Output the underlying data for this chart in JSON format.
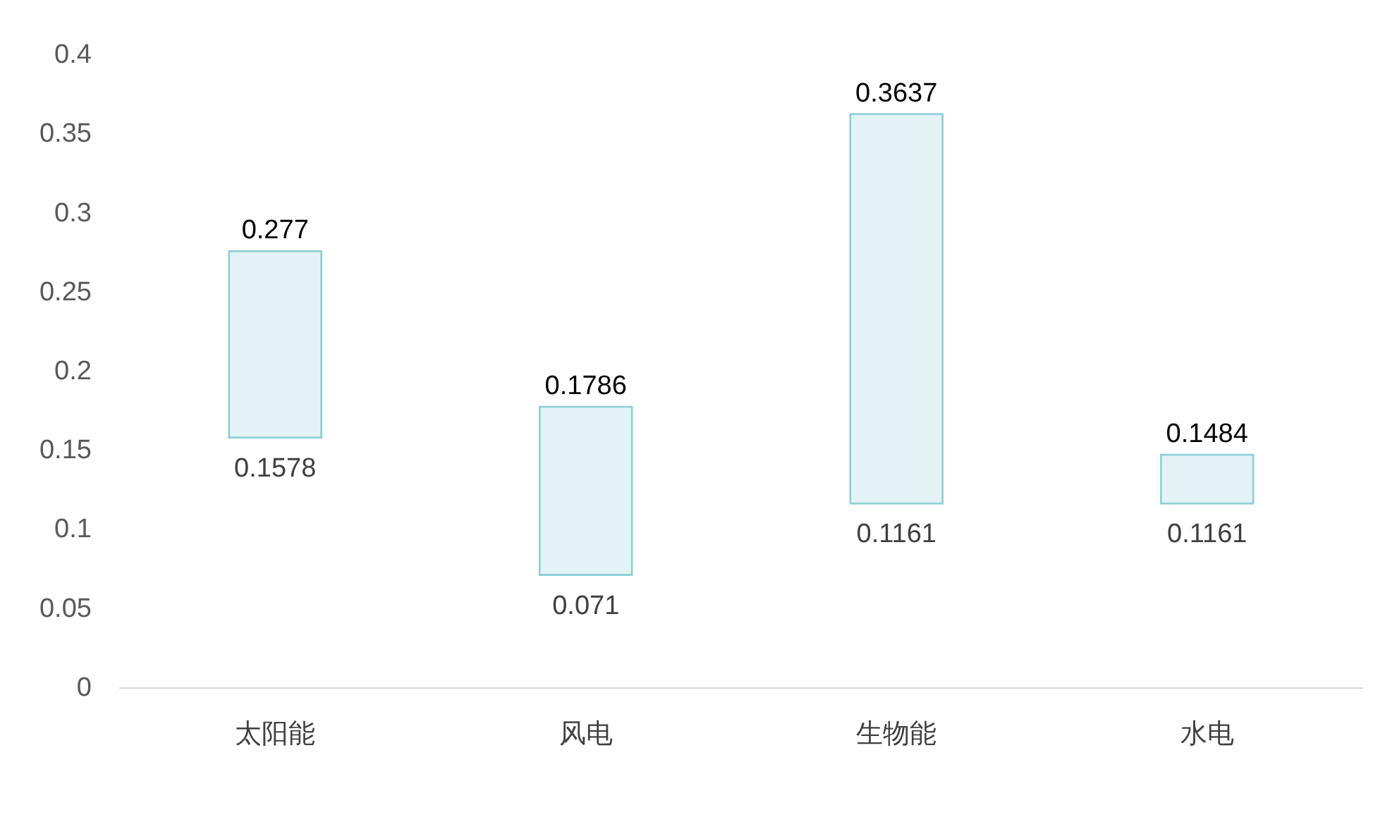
{
  "chart_data": {
    "type": "bar",
    "categories": [
      "太阳能",
      "风电",
      "生物能",
      "水电"
    ],
    "base": [
      0.1578,
      0.071,
      0.1161,
      0.1161
    ],
    "values": [
      0.1192,
      0.1076,
      0.2476,
      0.0323
    ],
    "color": "#8fd0d6",
    "ylim": [
      0,
      0.4
    ],
    "yticks": [
      0,
      0.05,
      0.1,
      0.15,
      0.2,
      0.25,
      0.3,
      0.35,
      0.4
    ],
    "grid": false,
    "legend": false,
    "annotations": [
      {
        "text": "0.277",
        "x": "太阳能",
        "y": 0.277
      },
      {
        "text": "0.1578",
        "x": "太阳能",
        "y": 0.1578
      },
      {
        "text": "0.1786",
        "x": "风电",
        "y": 0.1786
      },
      {
        "text": "0.071",
        "x": "风电",
        "y": 0.071
      },
      {
        "text": "0.3637",
        "x": "生物能",
        "y": 0.3637
      },
      {
        "text": "0.1161",
        "x": "生物能",
        "y": 0.1161
      },
      {
        "text": "0.1484",
        "x": "水电",
        "y": 0.1484
      },
      {
        "text": "0.1161",
        "x": "水电",
        "y": 0.1161
      }
    ]
  }
}
